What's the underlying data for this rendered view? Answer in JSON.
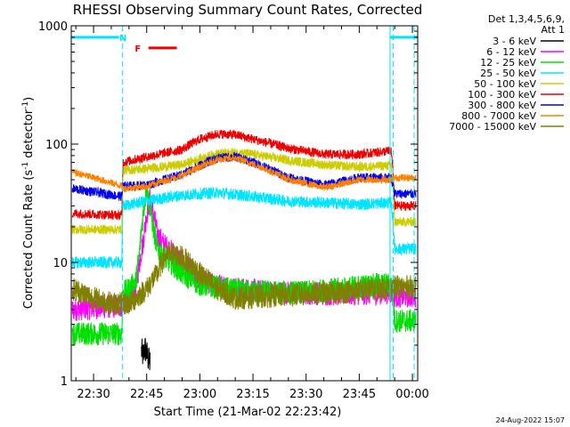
{
  "chart_data": {
    "type": "line",
    "title": "RHESSI Observing Summary Count Rates, Corrected",
    "xlabel": "Start Time (21-Mar-02 22:23:42)",
    "ylabel_main": "Corrected Count Rate (s",
    "ylabel_sup1": "-1",
    "ylabel_mid": " detector",
    "ylabel_sup2": "-1",
    "ylabel_end": ")",
    "y_scale": "log",
    "ylim": [
      1,
      1000
    ],
    "xlim_minutes": [
      -6.3,
      91.5
    ],
    "y_ticks": [
      1,
      10,
      100,
      1000
    ],
    "y_tick_labels": [
      "1",
      "10",
      "100",
      "1000"
    ],
    "x_ticks_minutes": [
      0,
      15,
      30,
      45,
      60,
      75,
      90
    ],
    "x_tick_labels": [
      "22:30",
      "22:45",
      "23:00",
      "23:15",
      "23:30",
      "23:45",
      "00:00"
    ],
    "x_units": "minutes after 22:30 UT",
    "grid": false,
    "legend_header": [
      "Det 1,3,4,5,6,9,",
      "Att 1"
    ],
    "legend_placement": "right",
    "date_stamp": "24-Aug-2022 15:07",
    "markers": [
      {
        "letter": "N",
        "color": "#00e5ff",
        "level": 800,
        "segments": [
          [
            -6.3,
            7.2
          ],
          [
            83.7,
            91.5
          ]
        ],
        "label_at": 8.3
      },
      {
        "letter": "F",
        "color": "#ee0000",
        "level": 650,
        "segments": [
          [
            15.5,
            23.5
          ]
        ],
        "label_at": 12.5
      }
    ],
    "vlines": [
      {
        "x": 8.2,
        "color": "#00e5ff",
        "style": "dashed"
      },
      {
        "x": 83.7,
        "color": "#00e5ff",
        "style": "solid"
      },
      {
        "x": 84.6,
        "color": "#00e5ff",
        "style": "dashed"
      },
      {
        "x": 90.5,
        "color": "#00e5ff",
        "style": "dashed"
      }
    ],
    "series": [
      {
        "name": "3 - 6 keV",
        "color": "#000000",
        "x": [
          13.5,
          14.0,
          14.5,
          15.0,
          15.5,
          16.0
        ],
        "y": [
          1.8,
          1.6,
          1.9,
          1.7,
          1.5,
          1.4
        ]
      },
      {
        "name": "6 - 12 keV",
        "color": "#ff00ff",
        "x": [
          -6,
          8,
          8.3,
          10,
          12,
          13,
          14,
          15,
          16,
          17,
          18,
          20,
          25,
          30,
          40,
          50,
          60,
          70,
          80,
          84,
          85,
          91
        ],
        "y": [
          4,
          4.3,
          4.6,
          4.8,
          6,
          10,
          15,
          25,
          35,
          25,
          17,
          14,
          10,
          7,
          6,
          5.6,
          5.5,
          5.4,
          5.5,
          5.6,
          5.2,
          5.2
        ]
      },
      {
        "name": "12 - 25 keV",
        "color": "#00e000",
        "x": [
          -6,
          8,
          8.3,
          10,
          12,
          13,
          14,
          15,
          16,
          17,
          18,
          20,
          25,
          30,
          40,
          50,
          60,
          70,
          80,
          84,
          85,
          91
        ],
        "y": [
          2.5,
          2.5,
          5.5,
          6,
          7,
          12,
          25,
          42,
          28,
          18,
          13,
          11,
          8,
          6.5,
          5.8,
          5.6,
          5.6,
          6,
          6.5,
          6.5,
          3.2,
          3.2
        ]
      },
      {
        "name": "25 - 50 keV",
        "color": "#00e5ff",
        "x": [
          -6,
          8,
          8.3,
          15,
          25,
          35,
          45,
          55,
          65,
          75,
          84,
          85,
          91
        ],
        "y": [
          10,
          10,
          30,
          33,
          37,
          39,
          36,
          33,
          32,
          31,
          32,
          13,
          13
        ]
      },
      {
        "name": "50 - 100 keV",
        "color": "#cccc00",
        "x": [
          -6,
          8,
          8.3,
          15,
          25,
          30,
          35,
          40,
          45,
          55,
          65,
          75,
          84,
          85,
          91
        ],
        "y": [
          19,
          19,
          60,
          62,
          67,
          75,
          83,
          85,
          82,
          73,
          67,
          64,
          66,
          22,
          22
        ]
      },
      {
        "name": "100 - 300 keV",
        "color": "#ee0000",
        "x": [
          -6,
          8,
          8.3,
          15,
          25,
          30,
          35,
          40,
          45,
          55,
          65,
          75,
          84,
          85,
          91
        ],
        "y": [
          26,
          25,
          70,
          78,
          90,
          110,
          122,
          120,
          110,
          92,
          82,
          82,
          88,
          30,
          30
        ]
      },
      {
        "name": "300 - 800 keV",
        "color": "#0000ee",
        "x": [
          -6,
          8,
          8.3,
          15,
          25,
          30,
          35,
          40,
          45,
          55,
          65,
          70,
          75,
          84,
          85,
          91
        ],
        "y": [
          42,
          36,
          44,
          45,
          55,
          66,
          76,
          78,
          70,
          52,
          45,
          48,
          52,
          52,
          38,
          38
        ]
      },
      {
        "name": "800 - 7000 keV",
        "color": "#ff8000",
        "x": [
          -6,
          8,
          8.3,
          15,
          25,
          30,
          35,
          40,
          45,
          55,
          65,
          70,
          75,
          84,
          85,
          91
        ],
        "y": [
          58,
          44,
          42,
          44,
          54,
          64,
          74,
          76,
          68,
          50,
          43,
          46,
          50,
          50,
          52,
          52
        ]
      },
      {
        "name": "7000 - 15000 keV",
        "color": "#808000",
        "x": [
          -6,
          0,
          5,
          10,
          12,
          15,
          18,
          20,
          22,
          25,
          30,
          35,
          40,
          50,
          60,
          70,
          80,
          84,
          85,
          91
        ],
        "y": [
          6,
          5,
          4.5,
          4.5,
          5,
          6,
          8,
          11,
          12,
          11,
          8,
          6,
          5,
          5.2,
          5.4,
          5.6,
          6,
          6.2,
          6.2,
          6.2
        ]
      }
    ]
  }
}
